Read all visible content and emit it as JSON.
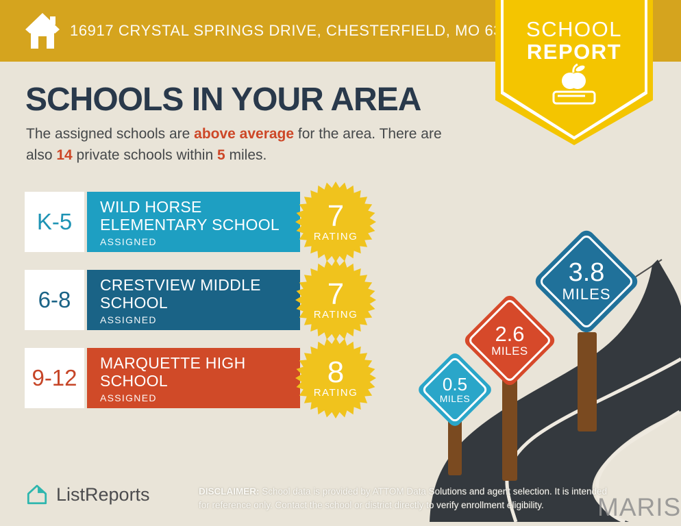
{
  "header": {
    "address": "16917 CRYSTAL SPRINGS DRIVE, CHESTERFIELD, MO 63005"
  },
  "ribbon": {
    "line1": "SCHOOL",
    "line2": "REPORT"
  },
  "intro": {
    "title": "SCHOOLS IN YOUR AREA",
    "line1_pre": "The assigned schools are ",
    "line1_highlight": "above average",
    "line1_post": " for the area. There are",
    "line2_pre": "also ",
    "line2_count": "14",
    "line2_mid": " private schools within ",
    "line2_radius": "5",
    "line2_post": " miles."
  },
  "schools": [
    {
      "grades": "K-5",
      "name_line1": "WILD HORSE",
      "name_line2": "ELEMENTARY SCHOOL",
      "status": "ASSIGNED",
      "rating": "7",
      "rating_label": "RATING",
      "bar_color": "#1E9FC2",
      "grade_color": "#1D93B4"
    },
    {
      "grades": "6-8",
      "name_line1": "CRESTVIEW MIDDLE",
      "name_line2": "SCHOOL",
      "status": "ASSIGNED",
      "rating": "7",
      "rating_label": "RATING",
      "bar_color": "#1A6386",
      "grade_color": "#1A6386"
    },
    {
      "grades": "9-12",
      "name_line1": "MARQUETTE HIGH",
      "name_line2": "SCHOOL",
      "status": "ASSIGNED",
      "rating": "8",
      "rating_label": "RATING",
      "bar_color": "#D04A28",
      "grade_color": "#C64527"
    }
  ],
  "signs": [
    {
      "distance": "0.5",
      "unit": "MILES",
      "color": "#2AA6C9"
    },
    {
      "distance": "2.6",
      "unit": "MILES",
      "color": "#D6492A"
    },
    {
      "distance": "3.8",
      "unit": "MILES",
      "color": "#20719A"
    }
  ],
  "footer": {
    "brand": "ListReports",
    "disclaimer_label": "DISCLAIMER:",
    "disclaimer_line1": " School data is provided by ATTOM Data Solutions and agent selection. It is intended",
    "disclaimer_line2": "for reference only. Contact the school or district directly to verify enrollment eligibility.",
    "watermark": "MARIS"
  },
  "colors": {
    "header_gold": "#D5A41E",
    "ribbon_yellow": "#F4C500",
    "background": "#E9E4D8",
    "badge_yellow": "#F0C31D",
    "road": "#34393E",
    "road_line": "#EFEAE0",
    "post_brown": "#7A4A20",
    "brand_teal": "#2EB6AE"
  }
}
